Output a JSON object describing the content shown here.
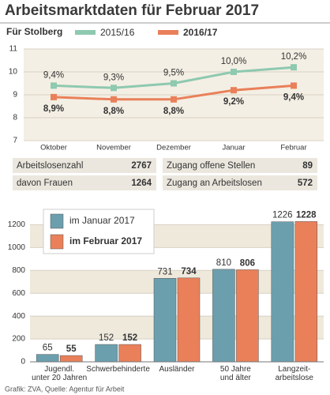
{
  "title": "Arbeitsmarktdaten für Februar 2017",
  "chart_data": [
    {
      "type": "line",
      "legend_title": "Für Stolberg",
      "categories": [
        "Oktober",
        "November",
        "Dezember",
        "Januar",
        "Februar"
      ],
      "series": [
        {
          "name": "2015/16",
          "color": "#8ec9b0",
          "values": [
            9.4,
            9.3,
            9.5,
            10.0,
            10.2
          ],
          "value_labels": [
            "9,4%",
            "9,3%",
            "9,5%",
            "10,0%",
            "10,2%"
          ]
        },
        {
          "name": "2016/17",
          "color": "#e9805a",
          "values": [
            8.9,
            8.8,
            8.8,
            9.2,
            9.4
          ],
          "value_labels": [
            "8,9%",
            "8,8%",
            "8,8%",
            "9,2%",
            "9,4%"
          ]
        }
      ],
      "ylim": [
        7,
        11
      ],
      "yticks": [
        7,
        8,
        9,
        10,
        11
      ],
      "grid": true
    },
    {
      "type": "bar",
      "categories": [
        "Jugendl.\nunter 20 Jahren",
        "Schwerbehinderte",
        "Ausländer",
        "50 Jahre\nund älter",
        "Langzeit-\narbeitslose"
      ],
      "series": [
        {
          "name": "im Januar 2017",
          "color": "#6c9fae",
          "values": [
            65,
            152,
            731,
            810,
            1226
          ]
        },
        {
          "name": "im Februar 2017",
          "color": "#e9805a",
          "values": [
            55,
            152,
            734,
            806,
            1228
          ]
        }
      ],
      "ylim": [
        0,
        1300
      ],
      "yticks": [
        0,
        200,
        400,
        600,
        800,
        1000,
        1200
      ],
      "grid": true
    }
  ],
  "table": {
    "rows": [
      [
        "Arbeitslosenzahl",
        "2767",
        "Zugang offene Stellen",
        "89"
      ],
      [
        "davon Frauen",
        "1264",
        "Zugang an Arbeitslosen",
        "572"
      ]
    ]
  },
  "source": "Grafik: ZVA, Quelle: Agentur für Arbeit"
}
